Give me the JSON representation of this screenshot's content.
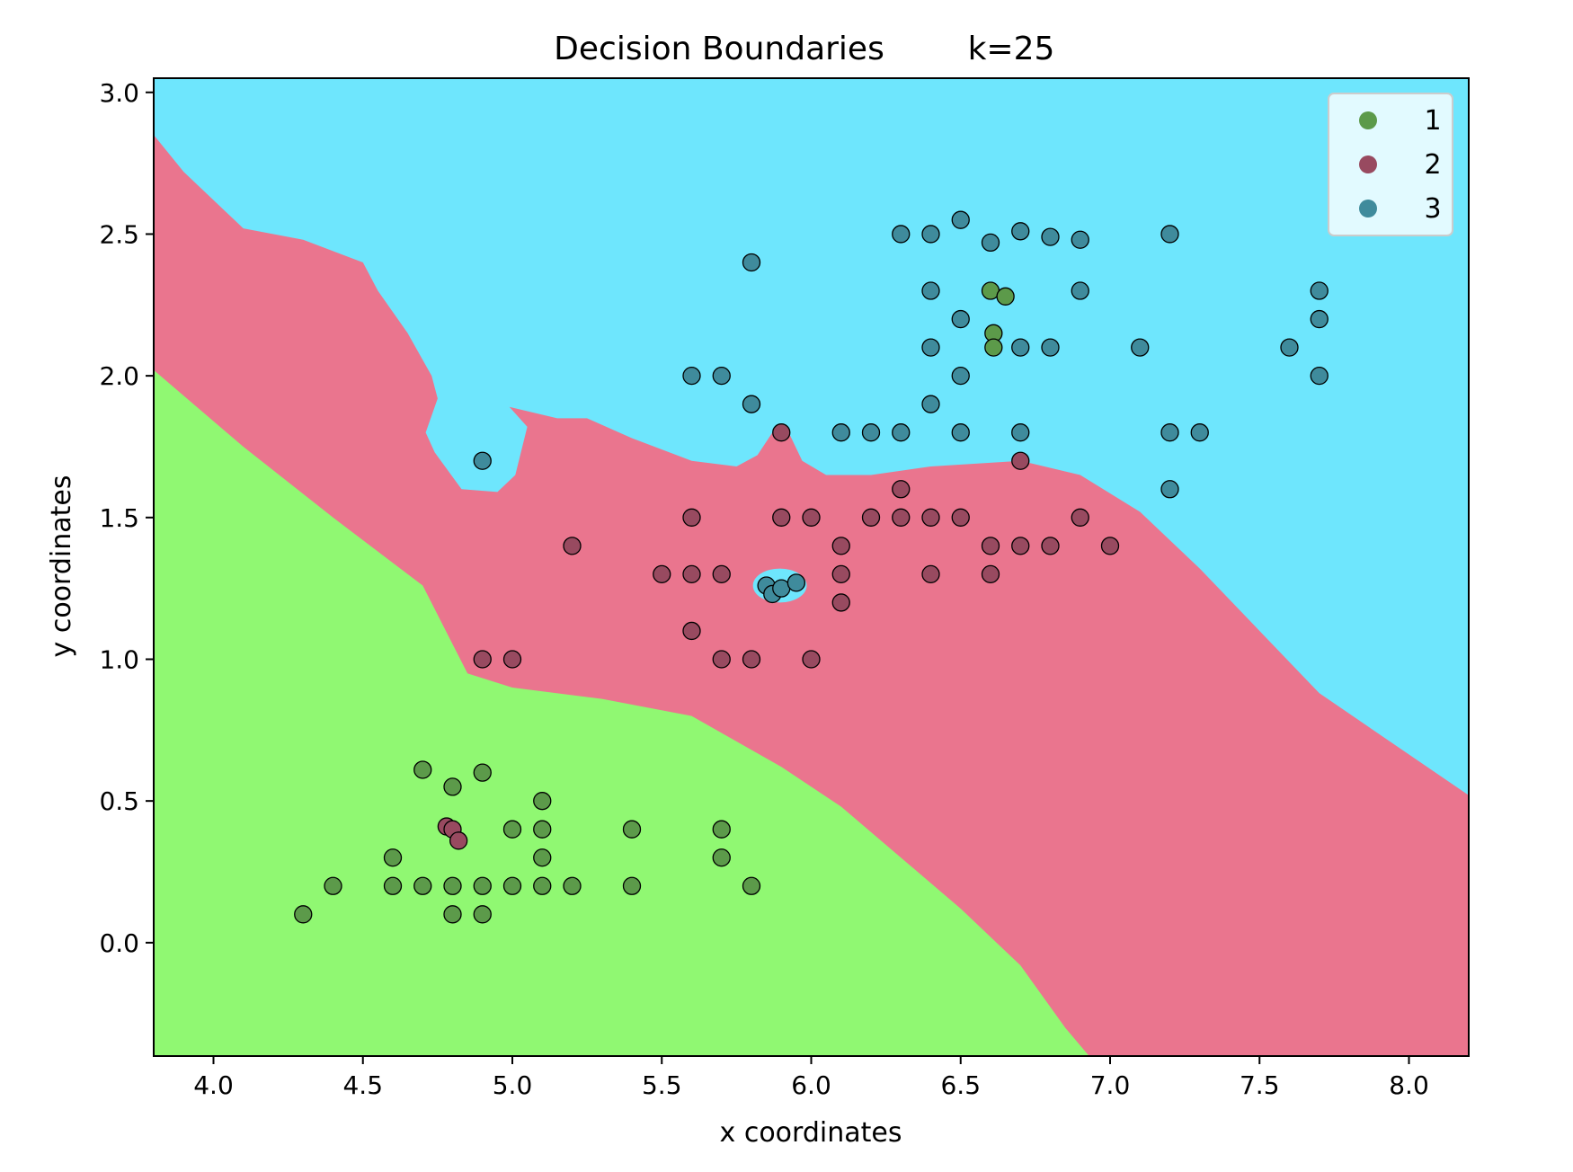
{
  "chart_data": {
    "type": "scatter",
    "title": "Decision Boundaries",
    "subtitle": "k=25",
    "xlabel": "x coordinates",
    "ylabel": "y coordinates",
    "xlim": [
      3.8,
      8.2
    ],
    "ylim": [
      -0.4,
      3.05
    ],
    "xticks": [
      "4.0",
      "4.5",
      "5.0",
      "5.5",
      "6.0",
      "6.5",
      "7.0",
      "7.5",
      "8.0"
    ],
    "yticks": [
      "0.0",
      "0.5",
      "1.0",
      "1.5",
      "2.0",
      "2.5",
      "3.0"
    ],
    "grid": false,
    "legend_position": "top-right",
    "region_colors": {
      "1": "#90f872",
      "2": "#ea758e",
      "3": "#6ee6fd"
    },
    "regions": {
      "class1": [
        [
          3.8,
          2.02
        ],
        [
          4.1,
          1.75
        ],
        [
          4.4,
          1.5
        ],
        [
          4.7,
          1.26
        ],
        [
          4.85,
          0.95
        ],
        [
          5.0,
          0.9
        ],
        [
          5.3,
          0.86
        ],
        [
          5.6,
          0.8
        ],
        [
          5.9,
          0.62
        ],
        [
          6.1,
          0.48
        ],
        [
          6.3,
          0.3
        ],
        [
          6.5,
          0.12
        ],
        [
          6.7,
          -0.08
        ],
        [
          6.85,
          -0.3
        ],
        [
          6.93,
          -0.4
        ],
        [
          3.8,
          -0.4
        ]
      ],
      "class3": [
        [
          3.8,
          3.05
        ],
        [
          8.2,
          3.05
        ],
        [
          8.2,
          0.52
        ],
        [
          7.7,
          0.88
        ],
        [
          7.5,
          1.1
        ],
        [
          7.3,
          1.32
        ],
        [
          7.1,
          1.52
        ],
        [
          6.9,
          1.65
        ],
        [
          6.7,
          1.7
        ],
        [
          6.4,
          1.68
        ],
        [
          6.2,
          1.65
        ],
        [
          6.05,
          1.65
        ],
        [
          5.97,
          1.7
        ],
        [
          5.92,
          1.81
        ],
        [
          5.87,
          1.8
        ],
        [
          5.82,
          1.72
        ],
        [
          5.75,
          1.68
        ],
        [
          5.6,
          1.7
        ],
        [
          5.4,
          1.78
        ],
        [
          5.25,
          1.85
        ],
        [
          5.15,
          1.85
        ],
        [
          4.99,
          1.89
        ],
        [
          5.05,
          1.82
        ],
        [
          5.01,
          1.65
        ],
        [
          4.95,
          1.59
        ],
        [
          4.83,
          1.6
        ],
        [
          4.74,
          1.73
        ],
        [
          4.71,
          1.8
        ],
        [
          4.75,
          1.92
        ],
        [
          4.73,
          2.0
        ],
        [
          4.65,
          2.15
        ],
        [
          4.55,
          2.3
        ],
        [
          4.5,
          2.4
        ],
        [
          4.3,
          2.48
        ],
        [
          4.1,
          2.52
        ],
        [
          3.9,
          2.72
        ],
        [
          3.8,
          2.85
        ]
      ],
      "island": {
        "cx": 5.895,
        "cy": 1.26,
        "rx": 0.09,
        "ry": 0.06
      }
    },
    "legend": [
      {
        "label": "1",
        "color": "#5c9a4a"
      },
      {
        "label": "2",
        "color": "#984a60"
      },
      {
        "label": "3",
        "color": "#3f8b9c"
      }
    ],
    "series": [
      {
        "name": "1",
        "color": "#5c9a4a",
        "points": [
          [
            4.3,
            0.1
          ],
          [
            4.4,
            0.2
          ],
          [
            4.6,
            0.2
          ],
          [
            4.6,
            0.3
          ],
          [
            4.7,
            0.2
          ],
          [
            4.7,
            0.61
          ],
          [
            4.8,
            0.55
          ],
          [
            4.8,
            0.2
          ],
          [
            4.8,
            0.1
          ],
          [
            4.9,
            0.6
          ],
          [
            4.9,
            0.2
          ],
          [
            4.9,
            0.1
          ],
          [
            5.0,
            0.2
          ],
          [
            5.0,
            0.4
          ],
          [
            5.1,
            0.5
          ],
          [
            5.1,
            0.4
          ],
          [
            5.1,
            0.3
          ],
          [
            5.1,
            0.2
          ],
          [
            5.2,
            0.2
          ],
          [
            5.4,
            0.4
          ],
          [
            5.4,
            0.2
          ],
          [
            5.7,
            0.4
          ],
          [
            5.7,
            0.3
          ],
          [
            5.8,
            0.2
          ],
          [
            6.6,
            2.3
          ],
          [
            6.65,
            2.28
          ],
          [
            6.61,
            2.15
          ],
          [
            6.61,
            2.1
          ]
        ]
      },
      {
        "name": "2",
        "color": "#984a60",
        "points": [
          [
            4.78,
            0.41
          ],
          [
            4.8,
            0.4
          ],
          [
            4.82,
            0.36
          ],
          [
            4.9,
            1.0
          ],
          [
            5.0,
            1.0
          ],
          [
            5.2,
            1.4
          ],
          [
            5.5,
            1.3
          ],
          [
            5.6,
            1.5
          ],
          [
            5.6,
            1.3
          ],
          [
            5.6,
            1.1
          ],
          [
            5.7,
            1.3
          ],
          [
            5.7,
            1.0
          ],
          [
            5.8,
            1.0
          ],
          [
            5.9,
            1.8
          ],
          [
            5.9,
            1.5
          ],
          [
            6.0,
            1.5
          ],
          [
            6.0,
            1.0
          ],
          [
            6.1,
            1.4
          ],
          [
            6.1,
            1.3
          ],
          [
            6.1,
            1.2
          ],
          [
            6.2,
            1.5
          ],
          [
            6.3,
            1.6
          ],
          [
            6.3,
            1.5
          ],
          [
            6.4,
            1.5
          ],
          [
            6.4,
            1.3
          ],
          [
            6.5,
            1.5
          ],
          [
            6.6,
            1.4
          ],
          [
            6.6,
            1.3
          ],
          [
            6.7,
            1.7
          ],
          [
            6.7,
            1.4
          ],
          [
            6.8,
            1.4
          ],
          [
            6.9,
            1.5
          ],
          [
            7.0,
            1.4
          ]
        ]
      },
      {
        "name": "3",
        "color": "#3f8b9c",
        "points": [
          [
            4.9,
            1.7
          ],
          [
            5.6,
            2.0
          ],
          [
            5.7,
            2.0
          ],
          [
            5.8,
            2.4
          ],
          [
            5.8,
            1.9
          ],
          [
            5.85,
            1.26
          ],
          [
            5.87,
            1.23
          ],
          [
            5.9,
            1.25
          ],
          [
            5.95,
            1.27
          ],
          [
            6.1,
            1.8
          ],
          [
            6.2,
            1.8
          ],
          [
            6.3,
            2.5
          ],
          [
            6.3,
            1.8
          ],
          [
            6.4,
            2.5
          ],
          [
            6.4,
            2.3
          ],
          [
            6.4,
            2.1
          ],
          [
            6.4,
            1.9
          ],
          [
            6.5,
            2.55
          ],
          [
            6.5,
            2.2
          ],
          [
            6.5,
            2.0
          ],
          [
            6.5,
            1.8
          ],
          [
            6.6,
            2.47
          ],
          [
            6.7,
            2.51
          ],
          [
            6.7,
            2.1
          ],
          [
            6.7,
            1.8
          ],
          [
            6.8,
            2.49
          ],
          [
            6.8,
            2.1
          ],
          [
            6.9,
            2.48
          ],
          [
            6.9,
            2.3
          ],
          [
            7.1,
            2.1
          ],
          [
            7.2,
            2.5
          ],
          [
            7.2,
            1.8
          ],
          [
            7.2,
            1.6
          ],
          [
            7.3,
            1.8
          ],
          [
            7.6,
            2.1
          ],
          [
            7.7,
            2.3
          ],
          [
            7.7,
            2.2
          ],
          [
            7.7,
            2.0
          ]
        ]
      }
    ]
  }
}
